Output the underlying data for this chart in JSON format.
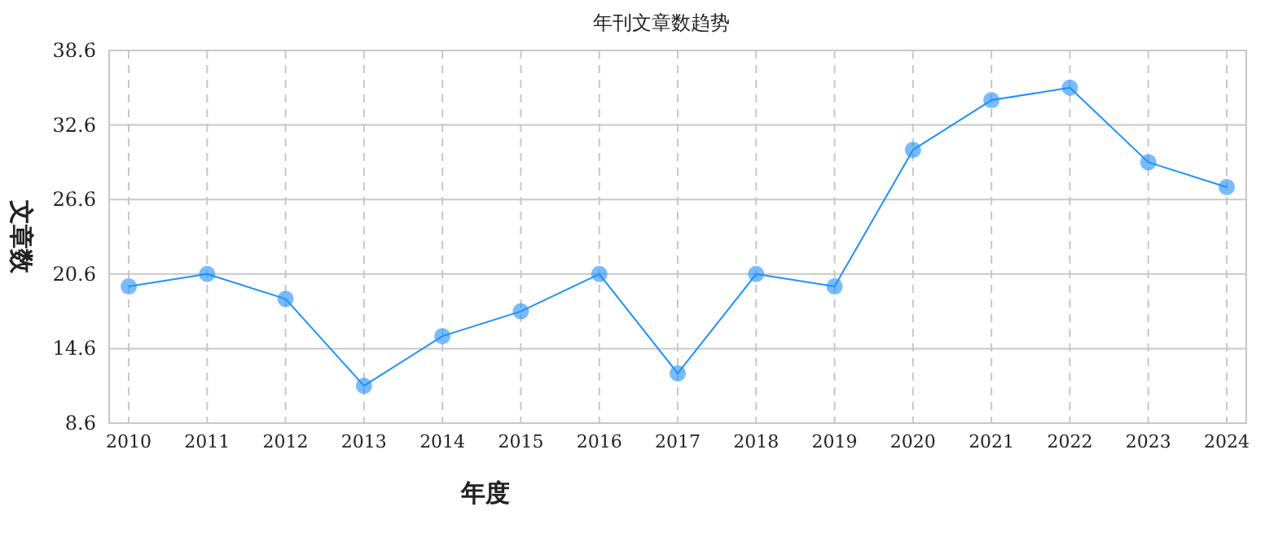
{
  "chart_data": {
    "type": "line",
    "title": "年刊文章数趋势",
    "xlabel": "年度",
    "ylabel": "文章数",
    "categories": [
      "2010",
      "2011",
      "2012",
      "2013",
      "2014",
      "2015",
      "2016",
      "2017",
      "2018",
      "2019",
      "2020",
      "2021",
      "2022",
      "2023",
      "2024"
    ],
    "series": [
      {
        "color": "#1e90ff",
        "values": [
          19.6,
          20.6,
          18.6,
          11.6,
          15.6,
          17.6,
          20.6,
          12.6,
          20.6,
          19.6,
          30.6,
          34.6,
          35.6,
          29.6,
          27.6
        ]
      }
    ],
    "ylim": [
      8.6,
      38.6
    ],
    "yticks": [
      8.6,
      14.6,
      20.6,
      26.6,
      32.6,
      38.6
    ],
    "grid": true,
    "marker": "circle",
    "line_style": "solid"
  }
}
